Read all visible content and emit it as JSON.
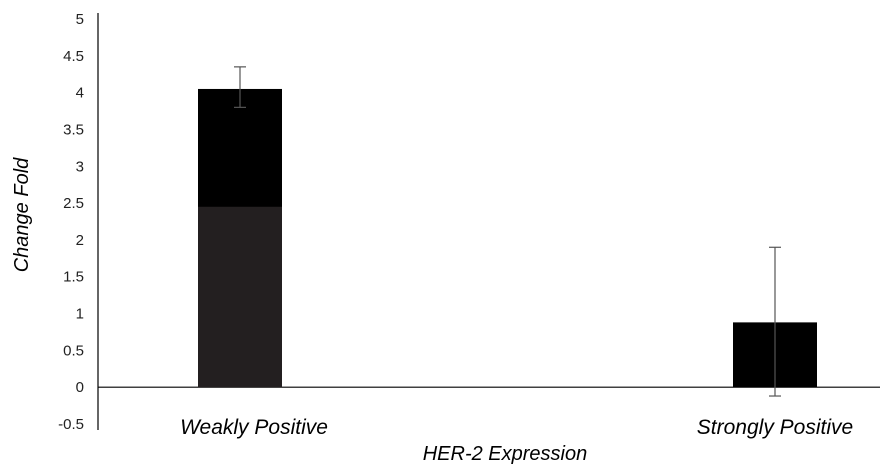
{
  "chart_data": {
    "type": "bar",
    "title": "",
    "xlabel": "HER-2 Expression",
    "ylabel": "Change Fold",
    "categories": [
      "Weakly Positive",
      "Strongly Positive"
    ],
    "values": [
      4.05,
      0.88
    ],
    "error": {
      "upper": [
        4.35,
        1.9
      ],
      "lower": [
        3.8,
        -0.12
      ]
    },
    "ylim": [
      -0.5,
      5
    ],
    "yticks": [
      "5",
      "4.5",
      "4",
      "3.5",
      "3",
      "2.5",
      "2",
      "1.5",
      "1",
      "0.5",
      "0",
      "-0.5"
    ],
    "ytick_values": [
      5,
      4.5,
      4,
      3.5,
      3,
      2.5,
      2,
      1.5,
      1,
      0.5,
      0,
      -0.5
    ],
    "grid": false,
    "legend": "none",
    "colors": {
      "bar": "#000000",
      "bar_lower_shade": "#231f20",
      "axis": "#000000",
      "error_bar": "#555555"
    }
  }
}
